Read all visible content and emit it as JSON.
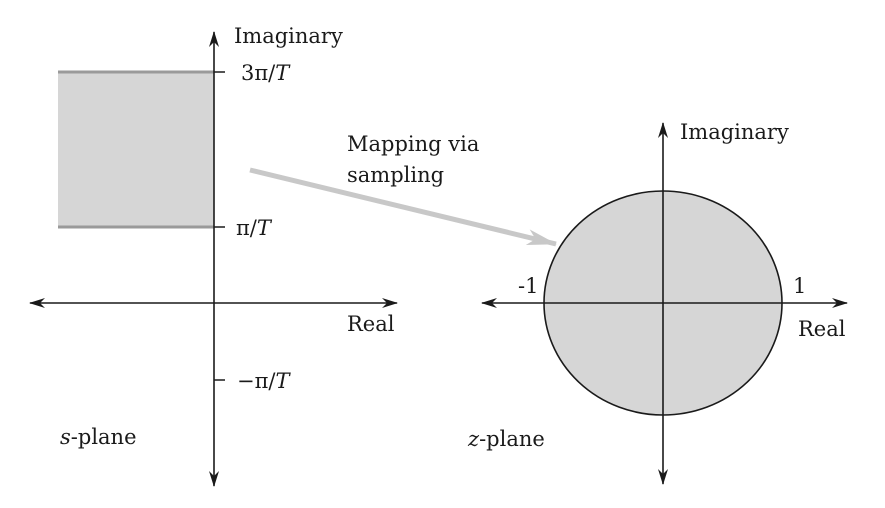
{
  "s_plane": {
    "axis_vertical_label": "Imaginary",
    "axis_horizontal_label": "Real",
    "tick_top_prefix": "3π/",
    "tick_top_var": "T",
    "tick_mid_prefix": "π/",
    "tick_mid_var": "T",
    "tick_bottom_prefix": "−π/",
    "tick_bottom_var": "T",
    "plane_var": "s",
    "plane_suffix": "-plane"
  },
  "mapping": {
    "line1": "Mapping via",
    "line2": "sampling"
  },
  "z_plane": {
    "axis_vertical_label": "Imaginary",
    "axis_horizontal_label": "Real",
    "tick_left": "-1",
    "tick_right": "1",
    "plane_var": "z",
    "plane_suffix": "-plane"
  },
  "colors": {
    "region_fill": "#d6d6d6",
    "region_edge": "#9a9a9a",
    "arrow": "#c8c8c8",
    "axis": "#1a1a1a"
  }
}
